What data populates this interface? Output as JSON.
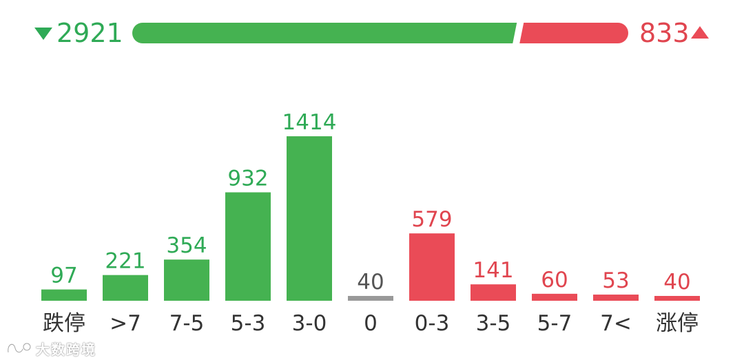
{
  "summary": {
    "down_count": "2921",
    "up_count": "833",
    "down": 2921,
    "up": 833
  },
  "colors": {
    "down": "#45b251",
    "down_text": "#2faa56",
    "up": "#ea4b57",
    "up_text": "#e0454f",
    "flat": "#999999",
    "flat_text": "#555555"
  },
  "chart_data": {
    "type": "bar",
    "categories": [
      "跌停",
      ">7",
      "7-5",
      "5-3",
      "3-0",
      "0",
      "0-3",
      "3-5",
      "5-7",
      "7<",
      "涨停"
    ],
    "values": [
      97,
      221,
      354,
      932,
      1414,
      40,
      579,
      141,
      60,
      53,
      40
    ],
    "labels": [
      "97",
      "221",
      "354",
      "932",
      "1414",
      "40",
      "579",
      "141",
      "60",
      "53",
      "40"
    ],
    "groups": [
      "down",
      "down",
      "down",
      "down",
      "down",
      "flat",
      "up",
      "up",
      "up",
      "up",
      "up"
    ],
    "ylim": [
      0,
      1414
    ],
    "grid": false,
    "legend": "none"
  },
  "watermark": {
    "text": "大数跨境",
    "logo_icon": "dashuju-logo-icon"
  }
}
